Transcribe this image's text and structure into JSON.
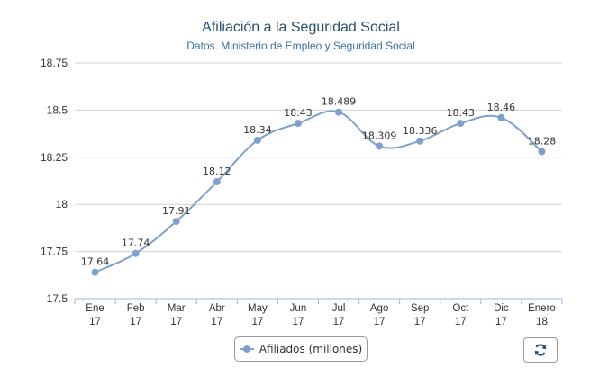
{
  "chart_data": {
    "type": "line",
    "title": "Afiliación a la Seguridad Social",
    "subtitle": "Datos. Ministerio de Empleo y Seguridad Social",
    "categories": [
      [
        "Ene",
        "17"
      ],
      [
        "Feb",
        "17"
      ],
      [
        "Mar",
        "17"
      ],
      [
        "Abr",
        "17"
      ],
      [
        "May",
        "17"
      ],
      [
        "Jun",
        "17"
      ],
      [
        "Jul",
        "17"
      ],
      [
        "Ago",
        "17"
      ],
      [
        "Sep",
        "17"
      ],
      [
        "Oct",
        "17"
      ],
      [
        "Dic",
        "17"
      ],
      [
        "Enero",
        "18"
      ]
    ],
    "series": [
      {
        "name": "Afiliados (millones)",
        "values": [
          17.64,
          17.74,
          17.91,
          18.12,
          18.34,
          18.43,
          18.489,
          18.309,
          18.336,
          18.43,
          18.46,
          18.28
        ],
        "labels": [
          "17.64",
          "17.74",
          "17.91",
          "18.12",
          "18.34",
          "18.43",
          "18.489",
          "18.309",
          "18.336",
          "18.43",
          "18.46",
          "18.28"
        ]
      }
    ],
    "ylim": [
      17.5,
      18.75
    ],
    "yticks": [
      "17.5",
      "17.75",
      "18",
      "18.25",
      "18.5",
      "18.75"
    ],
    "grid": true,
    "legend_position": "bottom-center",
    "line_color": "#7f9fce"
  },
  "controls": {
    "refresh_icon": "refresh-icon"
  }
}
